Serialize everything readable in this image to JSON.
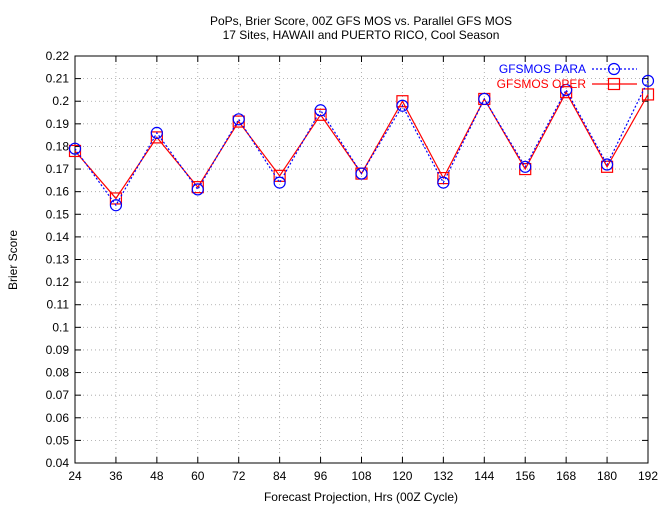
{
  "chart_data": {
    "type": "line",
    "title": "PoPs, Brier Score, 00Z GFS MOS vs. Parallel GFS MOS",
    "subtitle": "17 Sites, HAWAII and PUERTO RICO, Cool Season",
    "xlabel": "Forecast Projection, Hrs (00Z Cycle)",
    "ylabel": "Brier Score",
    "x": [
      24,
      36,
      48,
      60,
      72,
      84,
      96,
      108,
      120,
      132,
      144,
      156,
      168,
      180,
      192
    ],
    "xlim": [
      24,
      192
    ],
    "ylim": [
      0.04,
      0.22
    ],
    "x_ticks": [
      "24",
      "36",
      "48",
      "60",
      "72",
      "84",
      "96",
      "108",
      "120",
      "132",
      "144",
      "156",
      "168",
      "180",
      "192"
    ],
    "y_ticks": [
      "0.04",
      "0.05",
      "0.06",
      "0.07",
      "0.08",
      "0.09",
      "0.1",
      "0.11",
      "0.12",
      "0.13",
      "0.14",
      "0.15",
      "0.16",
      "0.17",
      "0.18",
      "0.19",
      "0.2",
      "0.21",
      "0.22"
    ],
    "grid": true,
    "legend_position": "top-right",
    "series": [
      {
        "name": "GFSMOS PARA",
        "color": "#0000ff",
        "line_style": "dotted",
        "marker": "circle",
        "values": [
          0.179,
          0.154,
          0.186,
          0.161,
          0.192,
          0.164,
          0.196,
          0.168,
          0.198,
          0.164,
          0.201,
          0.171,
          0.205,
          0.172,
          0.209
        ]
      },
      {
        "name": "GFSMOS OPER",
        "color": "#ff0000",
        "line_style": "solid",
        "marker": "square",
        "values": [
          0.178,
          0.157,
          0.184,
          0.162,
          0.191,
          0.167,
          0.194,
          0.168,
          0.2,
          0.166,
          0.201,
          0.17,
          0.204,
          0.171,
          0.203
        ]
      }
    ]
  }
}
